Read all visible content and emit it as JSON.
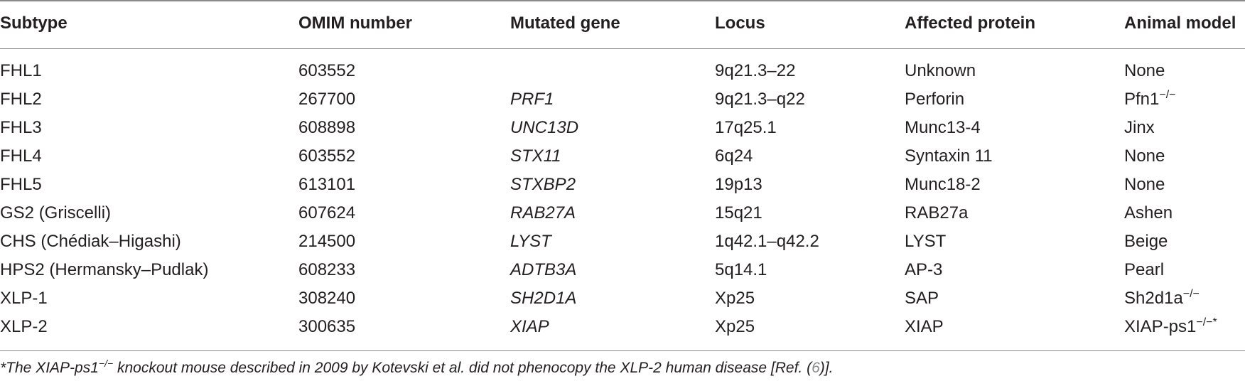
{
  "table": {
    "headers": [
      "Subtype",
      "OMIM number",
      "Mutated gene",
      "Locus",
      "Affected protein",
      "Animal model"
    ],
    "rows": [
      {
        "subtype": "FHL1",
        "omim": "603552",
        "gene": "",
        "locus": "9q21.3–22",
        "protein": "Unknown",
        "model": "None",
        "model_sup": ""
      },
      {
        "subtype": "FHL2",
        "omim": "267700",
        "gene": "PRF1",
        "locus": "9q21.3–q22",
        "protein": "Perforin",
        "model": "Pfn1",
        "model_sup": "−/−"
      },
      {
        "subtype": "FHL3",
        "omim": "608898",
        "gene": "UNC13D",
        "locus": "17q25.1",
        "protein": "Munc13-4",
        "model": "Jinx",
        "model_sup": ""
      },
      {
        "subtype": "FHL4",
        "omim": "603552",
        "gene": "STX11",
        "locus": "6q24",
        "protein": "Syntaxin 11",
        "model": "None",
        "model_sup": ""
      },
      {
        "subtype": "FHL5",
        "omim": "613101",
        "gene": "STXBP2",
        "locus": "19p13",
        "protein": "Munc18-2",
        "model": "None",
        "model_sup": ""
      },
      {
        "subtype": "GS2 (Griscelli)",
        "omim": "607624",
        "gene": "RAB27A",
        "locus": "15q21",
        "protein": "RAB27a",
        "model": "Ashen",
        "model_sup": ""
      },
      {
        "subtype": "CHS (Chédiak–Higashi)",
        "omim": "214500",
        "gene": "LYST",
        "locus": "1q42.1–q42.2",
        "protein": "LYST",
        "model": "Beige",
        "model_sup": ""
      },
      {
        "subtype": "HPS2 (Hermansky–Pudlak)",
        "omim": "608233",
        "gene": "ADTB3A",
        "locus": "5q14.1",
        "protein": "AP-3",
        "model": "Pearl",
        "model_sup": ""
      },
      {
        "subtype": "XLP-1",
        "omim": "308240",
        "gene": "SH2D1A",
        "locus": "Xp25",
        "protein": "SAP",
        "model": "Sh2d1a",
        "model_sup": "−/−"
      },
      {
        "subtype": "XLP-2",
        "omim": "300635",
        "gene": "XIAP",
        "locus": "Xp25",
        "protein": "XIAP",
        "model": "XIAP-ps1",
        "model_sup": "−/−*"
      }
    ]
  },
  "footnote": {
    "pre": "*The XIAP-ps1",
    "sup": "−/−",
    "mid": " knockout mouse described in 2009 by Kotevski et al. did not phenocopy the XLP-2 human disease [Ref. (",
    "ref": "6",
    "post": ")]."
  }
}
